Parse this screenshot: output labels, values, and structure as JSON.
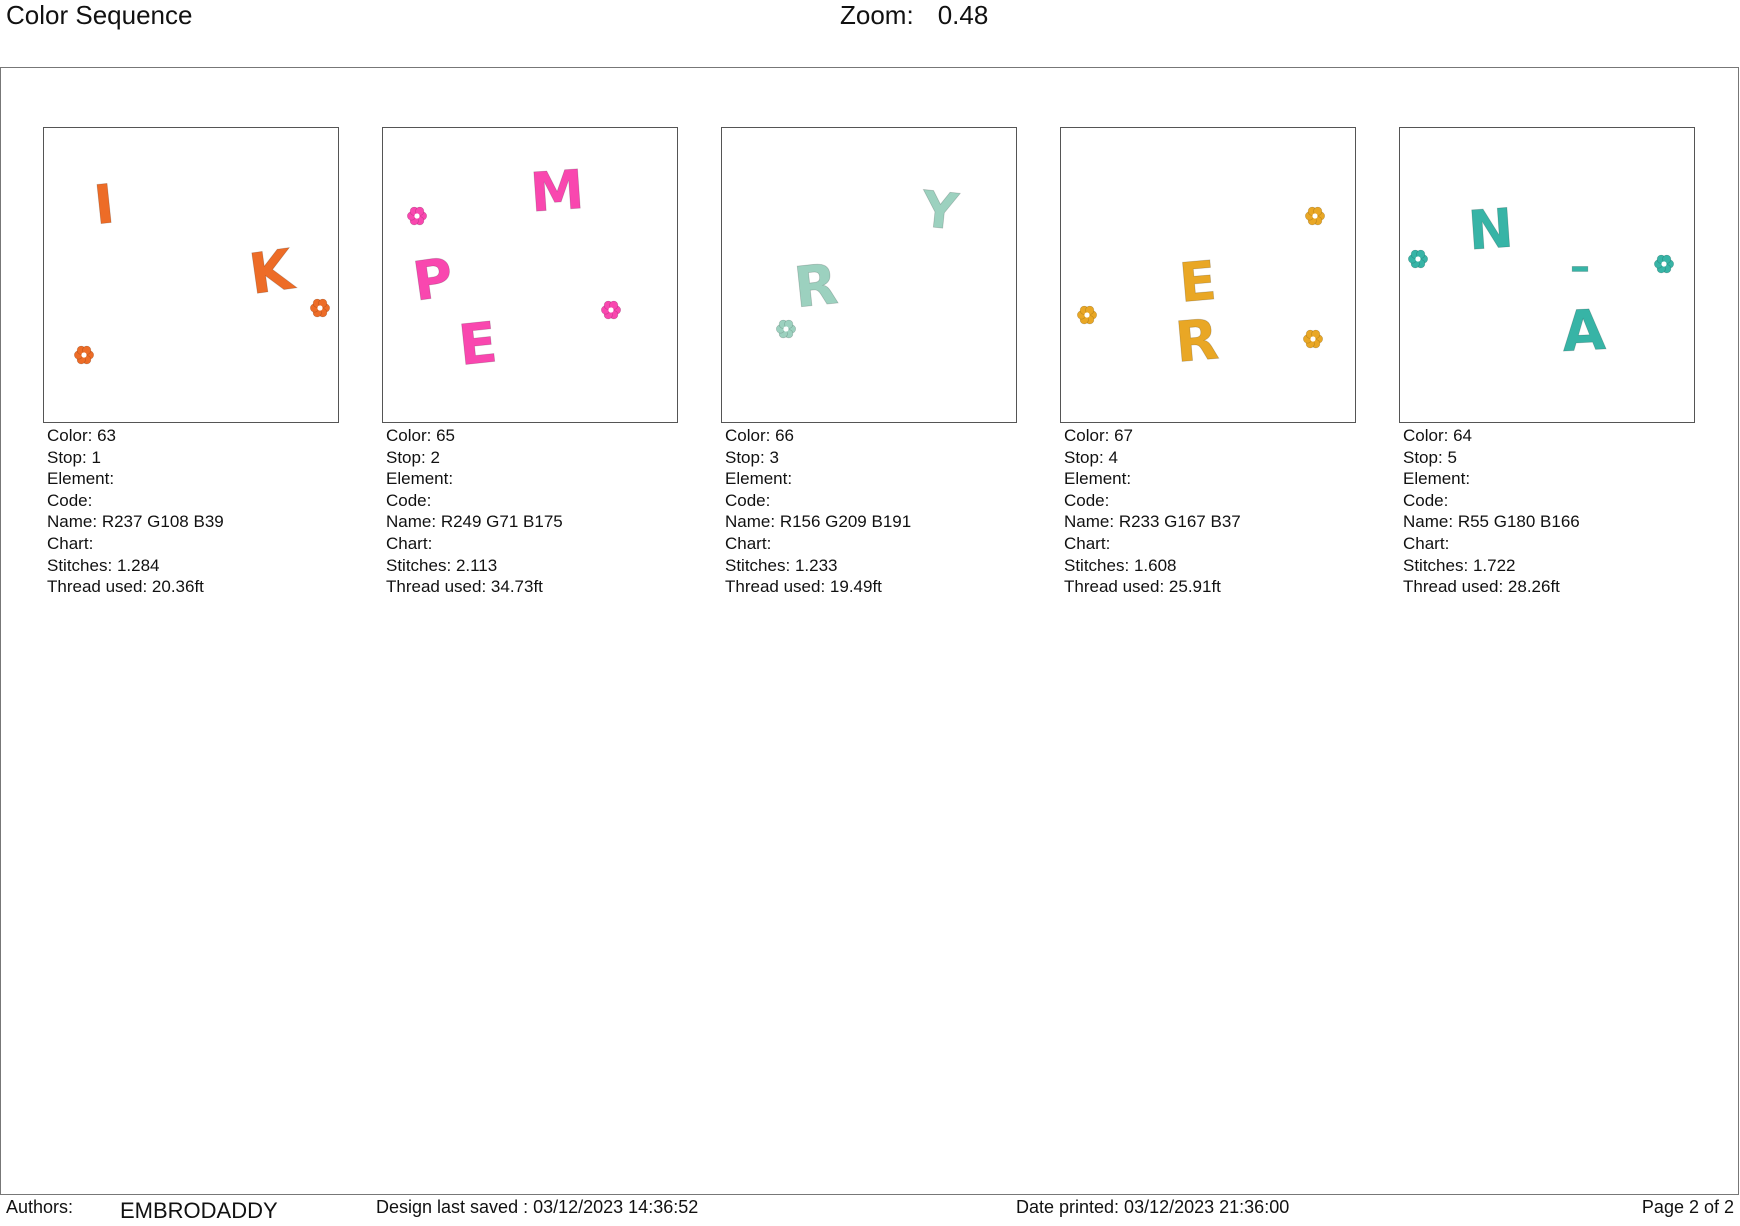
{
  "header": {
    "title": "Color Sequence",
    "zoom_label": "Zoom:",
    "zoom_value": "0.48"
  },
  "info_labels": {
    "color": "Color:",
    "stop": "Stop:",
    "element": "Element:",
    "code": "Code:",
    "name": "Name:",
    "chart": "Chart:",
    "stitches": "Stitches:",
    "thread": "Thread used:"
  },
  "cards": [
    {
      "swatch": "#ED6C27",
      "color": "63",
      "stop": "1",
      "element": "",
      "code": "",
      "name": "R237 G108 B39",
      "chart": "",
      "stitches": "1.284",
      "thread": "20.36ft",
      "letters": [
        "I",
        "K"
      ]
    },
    {
      "swatch": "#F947AF",
      "color": "65",
      "stop": "2",
      "element": "",
      "code": "",
      "name": "R249 G71 B175",
      "chart": "",
      "stitches": "2.113",
      "thread": "34.73ft",
      "letters": [
        "M",
        "P",
        "E"
      ]
    },
    {
      "swatch": "#9CD1BF",
      "color": "66",
      "stop": "3",
      "element": "",
      "code": "",
      "name": "R156 G209 B191",
      "chart": "",
      "stitches": "1.233",
      "thread": "19.49ft",
      "letters": [
        "Y",
        "R"
      ]
    },
    {
      "swatch": "#E9A725",
      "color": "67",
      "stop": "4",
      "element": "",
      "code": "",
      "name": "R233 G167 B37",
      "chart": "",
      "stitches": "1.608",
      "thread": "25.91ft",
      "letters": [
        "E",
        "R"
      ]
    },
    {
      "swatch": "#37B4A6",
      "color": "64",
      "stop": "5",
      "element": "",
      "code": "",
      "name": "R55 G180 B166",
      "chart": "",
      "stitches": "1.722",
      "thread": "28.26ft",
      "letters": [
        "N",
        "–",
        "A"
      ]
    }
  ],
  "footer": {
    "authors_label": "Authors:",
    "authors_value": "EMBRODADDY",
    "saved": "Design last saved : 03/12/2023 14:36:52",
    "printed": "Date printed: 03/12/2023 21:36:00",
    "page": "Page 2 of 2"
  }
}
